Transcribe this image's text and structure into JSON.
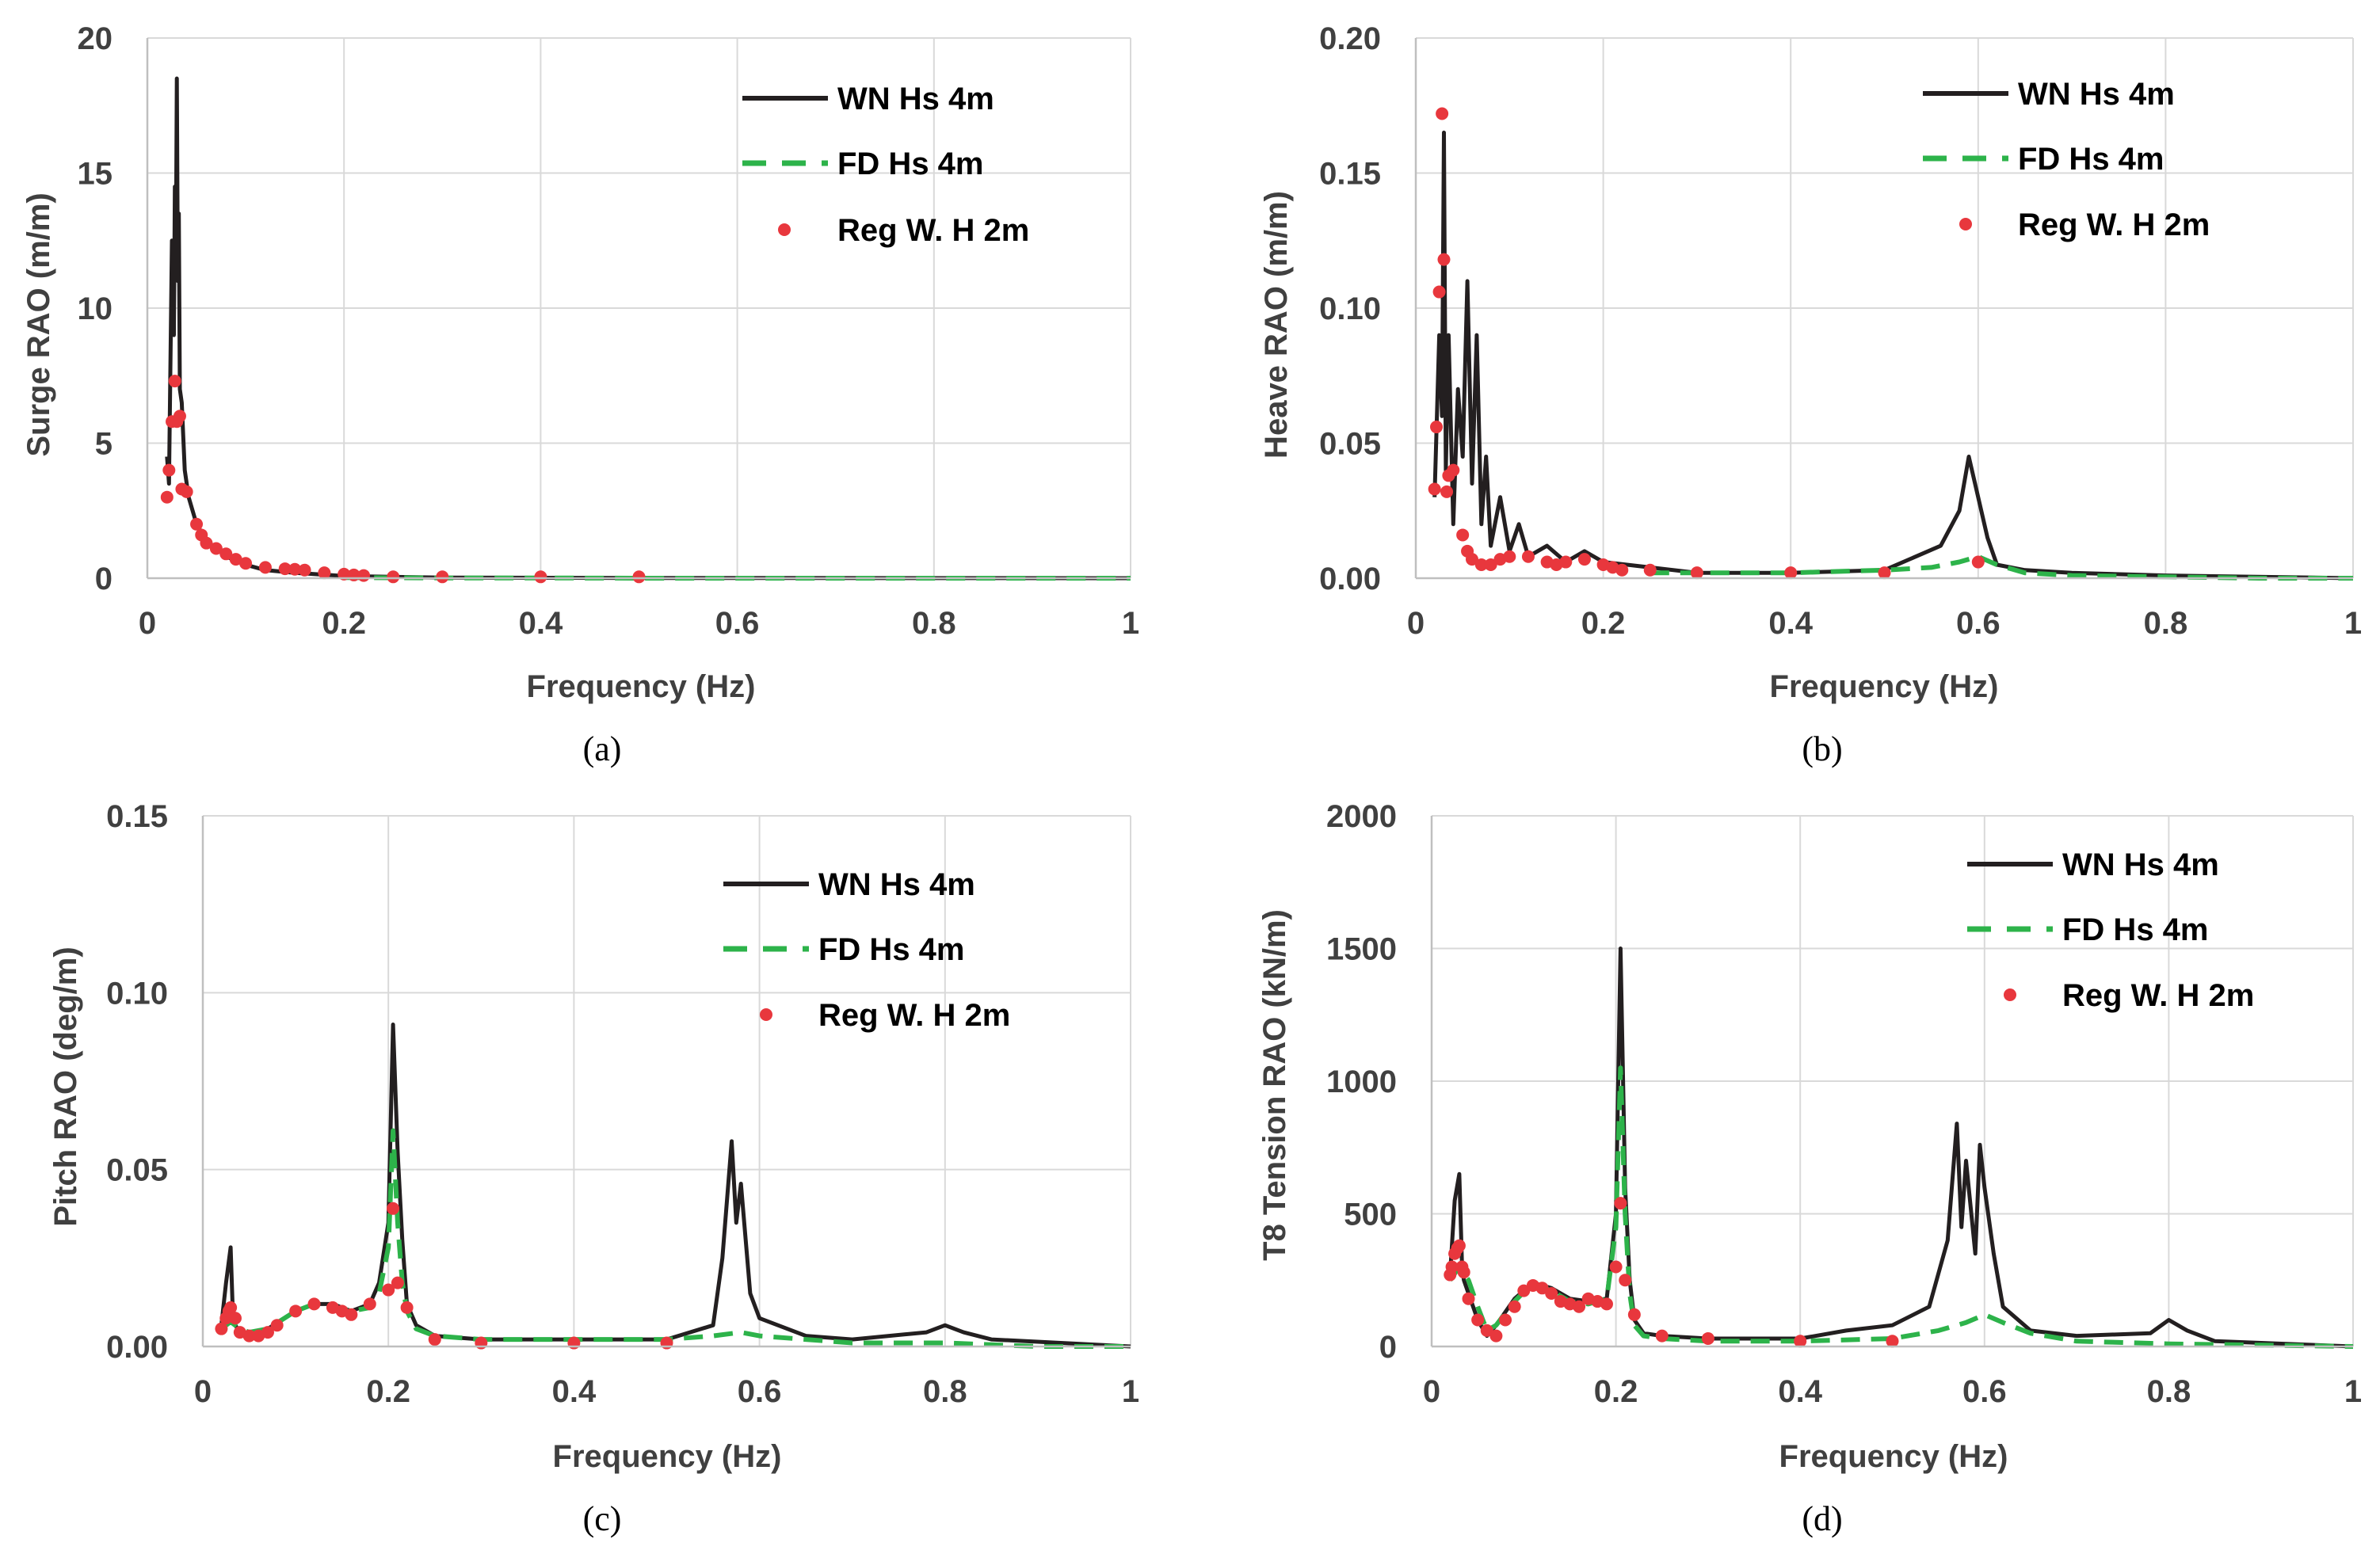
{
  "colors": {
    "wn": "#231f20",
    "fd": "#2db34a",
    "reg": "#e8373d",
    "grid": "#d9d9d9",
    "text": "#404040"
  },
  "chart_data": [
    {
      "type": "line",
      "caption": "(a)",
      "xlabel": "Frequency (Hz)",
      "ylabel": "Surge RAO (m/m)",
      "xlim": [
        0,
        1
      ],
      "ylim": [
        0,
        20
      ],
      "xticks": [
        0,
        0.2,
        0.4,
        0.6,
        0.8,
        1
      ],
      "xtick_labels": [
        "0",
        "0.2",
        "0.4",
        "0.6",
        "0.8",
        "1"
      ],
      "yticks": [
        0,
        5,
        10,
        15,
        20
      ],
      "ytick_labels": [
        "0",
        "5",
        "10",
        "15",
        "20"
      ],
      "legend": [
        "WN Hs 4m",
        "FD Hs 4m",
        "Reg W. H 2m"
      ],
      "legend_position": "top-right",
      "series": [
        {
          "name": "WN Hs 4m",
          "kind": "line",
          "x": [
            0.02,
            0.022,
            0.025,
            0.027,
            0.028,
            0.029,
            0.03,
            0.031,
            0.032,
            0.033,
            0.035,
            0.038,
            0.042,
            0.05,
            0.06,
            0.07,
            0.08,
            0.1,
            0.12,
            0.15,
            0.2,
            0.3,
            0.5,
            1.0
          ],
          "y": [
            4.5,
            3.5,
            12.5,
            9.0,
            14.5,
            12.0,
            18.5,
            11.0,
            13.5,
            7.0,
            6.5,
            4.0,
            3.0,
            2.0,
            1.4,
            1.1,
            0.8,
            0.5,
            0.3,
            0.2,
            0.08,
            0.02,
            0.01,
            0.0
          ]
        },
        {
          "name": "FD Hs 4m",
          "kind": "dashed",
          "x": [
            0.2,
            0.3,
            0.4,
            0.5,
            0.6,
            0.7,
            0.8,
            0.9,
            1.0
          ],
          "y": [
            0.02,
            0.01,
            0.01,
            0.0,
            0.0,
            0.0,
            0.0,
            0.0,
            0.0
          ]
        },
        {
          "name": "Reg W. H 2m",
          "kind": "points",
          "x": [
            0.02,
            0.022,
            0.025,
            0.028,
            0.03,
            0.033,
            0.035,
            0.04,
            0.05,
            0.055,
            0.06,
            0.07,
            0.08,
            0.09,
            0.1,
            0.12,
            0.14,
            0.15,
            0.16,
            0.18,
            0.2,
            0.21,
            0.22,
            0.25,
            0.3,
            0.4,
            0.5
          ],
          "y": [
            3.0,
            4.0,
            5.8,
            7.3,
            5.8,
            6.0,
            3.3,
            3.2,
            2.0,
            1.6,
            1.3,
            1.1,
            0.9,
            0.7,
            0.55,
            0.4,
            0.35,
            0.33,
            0.3,
            0.2,
            0.15,
            0.12,
            0.1,
            0.05,
            0.05,
            0.05,
            0.05
          ]
        }
      ]
    },
    {
      "type": "line",
      "caption": "(b)",
      "xlabel": "Frequency (Hz)",
      "ylabel": "Heave RAO (m/m)",
      "xlim": [
        0,
        1
      ],
      "ylim": [
        0,
        0.2
      ],
      "xticks": [
        0,
        0.2,
        0.4,
        0.6,
        0.8,
        1
      ],
      "xtick_labels": [
        "0",
        "0.2",
        "0.4",
        "0.6",
        "0.8",
        "1"
      ],
      "yticks": [
        0,
        0.05,
        0.1,
        0.15,
        0.2
      ],
      "ytick_labels": [
        "0.00",
        "0.05",
        "0.10",
        "0.15",
        "0.20"
      ],
      "legend": [
        "WN Hs 4m",
        "FD Hs 4m",
        "Reg W. H 2m"
      ],
      "legend_position": "top-right",
      "series": [
        {
          "name": "WN Hs 4m",
          "kind": "line",
          "x": [
            0.02,
            0.025,
            0.028,
            0.03,
            0.032,
            0.035,
            0.04,
            0.045,
            0.05,
            0.055,
            0.06,
            0.065,
            0.07,
            0.075,
            0.08,
            0.09,
            0.1,
            0.11,
            0.12,
            0.14,
            0.16,
            0.18,
            0.2,
            0.25,
            0.3,
            0.4,
            0.5,
            0.56,
            0.58,
            0.59,
            0.6,
            0.61,
            0.62,
            0.65,
            0.7,
            0.8,
            1.0
          ],
          "y": [
            0.03,
            0.09,
            0.06,
            0.165,
            0.04,
            0.09,
            0.02,
            0.07,
            0.045,
            0.11,
            0.035,
            0.09,
            0.02,
            0.045,
            0.012,
            0.03,
            0.01,
            0.02,
            0.008,
            0.012,
            0.006,
            0.01,
            0.006,
            0.004,
            0.002,
            0.002,
            0.003,
            0.012,
            0.025,
            0.045,
            0.03,
            0.015,
            0.005,
            0.003,
            0.002,
            0.001,
            0.0
          ]
        },
        {
          "name": "FD Hs 4m",
          "kind": "dashed",
          "x": [
            0.25,
            0.3,
            0.4,
            0.5,
            0.55,
            0.58,
            0.6,
            0.62,
            0.65,
            0.7,
            0.8,
            0.9,
            1.0
          ],
          "y": [
            0.002,
            0.002,
            0.002,
            0.003,
            0.004,
            0.006,
            0.008,
            0.005,
            0.002,
            0.001,
            0.0005,
            0.0,
            0.0
          ]
        },
        {
          "name": "Reg W. H 2m",
          "kind": "points",
          "x": [
            0.02,
            0.022,
            0.025,
            0.028,
            0.03,
            0.033,
            0.035,
            0.04,
            0.05,
            0.055,
            0.06,
            0.07,
            0.08,
            0.09,
            0.1,
            0.12,
            0.14,
            0.15,
            0.16,
            0.18,
            0.2,
            0.21,
            0.22,
            0.25,
            0.3,
            0.4,
            0.5,
            0.6
          ],
          "y": [
            0.033,
            0.056,
            0.106,
            0.172,
            0.118,
            0.032,
            0.038,
            0.04,
            0.016,
            0.01,
            0.007,
            0.005,
            0.005,
            0.007,
            0.008,
            0.008,
            0.006,
            0.005,
            0.006,
            0.007,
            0.005,
            0.004,
            0.003,
            0.003,
            0.002,
            0.002,
            0.002,
            0.006
          ]
        }
      ]
    },
    {
      "type": "line",
      "caption": "(c)",
      "xlabel": "Frequency (Hz)",
      "ylabel": "Pitch RAO (deg/m)",
      "xlim": [
        0,
        1
      ],
      "ylim": [
        0,
        0.15
      ],
      "xticks": [
        0,
        0.2,
        0.4,
        0.6,
        0.8,
        1
      ],
      "xtick_labels": [
        "0",
        "0.2",
        "0.4",
        "0.6",
        "0.8",
        "1"
      ],
      "yticks": [
        0,
        0.05,
        0.1,
        0.15
      ],
      "ytick_labels": [
        "0.00",
        "0.05",
        "0.10",
        "0.15"
      ],
      "legend": [
        "WN Hs 4m",
        "FD Hs 4m",
        "Reg W. H 2m"
      ],
      "legend_position": "top-right",
      "series": [
        {
          "name": "WN Hs 4m",
          "kind": "line",
          "x": [
            0.02,
            0.025,
            0.03,
            0.032,
            0.035,
            0.04,
            0.05,
            0.07,
            0.1,
            0.12,
            0.14,
            0.16,
            0.18,
            0.19,
            0.2,
            0.205,
            0.21,
            0.215,
            0.22,
            0.23,
            0.25,
            0.3,
            0.4,
            0.5,
            0.55,
            0.56,
            0.57,
            0.575,
            0.58,
            0.59,
            0.6,
            0.65,
            0.7,
            0.78,
            0.8,
            0.82,
            0.85,
            1.0
          ],
          "y": [
            0.006,
            0.018,
            0.028,
            0.012,
            0.006,
            0.004,
            0.003,
            0.005,
            0.01,
            0.012,
            0.012,
            0.01,
            0.012,
            0.018,
            0.035,
            0.091,
            0.055,
            0.03,
            0.012,
            0.006,
            0.003,
            0.002,
            0.002,
            0.002,
            0.006,
            0.025,
            0.058,
            0.035,
            0.046,
            0.015,
            0.008,
            0.003,
            0.002,
            0.004,
            0.006,
            0.004,
            0.002,
            0.0
          ]
        },
        {
          "name": "FD Hs 4m",
          "kind": "dashed",
          "x": [
            0.02,
            0.03,
            0.04,
            0.05,
            0.07,
            0.1,
            0.12,
            0.14,
            0.16,
            0.18,
            0.19,
            0.2,
            0.205,
            0.21,
            0.215,
            0.22,
            0.23,
            0.25,
            0.3,
            0.4,
            0.5,
            0.55,
            0.58,
            0.6,
            0.65,
            0.7,
            0.8,
            0.9,
            1.0
          ],
          "y": [
            0.005,
            0.007,
            0.005,
            0.004,
            0.005,
            0.01,
            0.012,
            0.011,
            0.01,
            0.011,
            0.015,
            0.028,
            0.061,
            0.035,
            0.018,
            0.01,
            0.005,
            0.003,
            0.002,
            0.002,
            0.002,
            0.003,
            0.004,
            0.003,
            0.002,
            0.001,
            0.001,
            0.0,
            0.0
          ]
        },
        {
          "name": "Reg W. H 2m",
          "kind": "points",
          "x": [
            0.02,
            0.025,
            0.028,
            0.03,
            0.035,
            0.04,
            0.05,
            0.06,
            0.07,
            0.08,
            0.1,
            0.12,
            0.14,
            0.15,
            0.16,
            0.18,
            0.2,
            0.205,
            0.21,
            0.22,
            0.25,
            0.3,
            0.4,
            0.5
          ],
          "y": [
            0.005,
            0.008,
            0.01,
            0.011,
            0.008,
            0.004,
            0.003,
            0.003,
            0.004,
            0.006,
            0.01,
            0.012,
            0.011,
            0.01,
            0.009,
            0.012,
            0.016,
            0.039,
            0.018,
            0.011,
            0.002,
            0.001,
            0.001,
            0.001
          ]
        }
      ]
    },
    {
      "type": "line",
      "caption": "(d)",
      "xlabel": "Frequency (Hz)",
      "ylabel": "T8 Tension RAO (kN/m)",
      "xlim": [
        0,
        1
      ],
      "ylim": [
        0,
        2000
      ],
      "xticks": [
        0,
        0.2,
        0.4,
        0.6,
        0.8,
        1
      ],
      "xtick_labels": [
        "0",
        "0.2",
        "0.4",
        "0.6",
        "0.8",
        "1"
      ],
      "yticks": [
        0,
        500,
        1000,
        1500,
        2000
      ],
      "ytick_labels": [
        "0",
        "500",
        "1000",
        "1500",
        "2000"
      ],
      "legend": [
        "WN Hs 4m",
        "FD Hs 4m",
        "Reg W. H 2m"
      ],
      "legend_position": "top-right",
      "series": [
        {
          "name": "WN Hs 4m",
          "kind": "line",
          "x": [
            0.02,
            0.025,
            0.03,
            0.033,
            0.035,
            0.04,
            0.05,
            0.06,
            0.07,
            0.09,
            0.11,
            0.13,
            0.15,
            0.17,
            0.19,
            0.2,
            0.205,
            0.21,
            0.215,
            0.22,
            0.23,
            0.25,
            0.3,
            0.4,
            0.45,
            0.5,
            0.54,
            0.56,
            0.57,
            0.575,
            0.58,
            0.59,
            0.595,
            0.6,
            0.61,
            0.62,
            0.65,
            0.7,
            0.78,
            0.8,
            0.82,
            0.85,
            1.0
          ],
          "y": [
            270,
            550,
            650,
            300,
            250,
            200,
            100,
            40,
            80,
            180,
            240,
            220,
            180,
            170,
            180,
            500,
            1500,
            600,
            250,
            100,
            50,
            40,
            30,
            30,
            60,
            80,
            150,
            400,
            840,
            450,
            700,
            350,
            760,
            600,
            350,
            150,
            60,
            40,
            50,
            100,
            60,
            20,
            0
          ]
        },
        {
          "name": "FD Hs 4m",
          "kind": "dashed",
          "x": [
            0.02,
            0.03,
            0.04,
            0.05,
            0.06,
            0.07,
            0.09,
            0.11,
            0.13,
            0.15,
            0.17,
            0.19,
            0.2,
            0.205,
            0.21,
            0.215,
            0.22,
            0.23,
            0.25,
            0.3,
            0.4,
            0.5,
            0.55,
            0.58,
            0.6,
            0.62,
            0.65,
            0.7,
            0.8,
            0.9,
            1.0
          ],
          "y": [
            250,
            300,
            250,
            150,
            60,
            80,
            170,
            240,
            210,
            170,
            160,
            180,
            450,
            1050,
            500,
            200,
            80,
            40,
            30,
            20,
            20,
            30,
            60,
            90,
            120,
            90,
            50,
            20,
            10,
            5,
            0
          ]
        },
        {
          "name": "Reg W. H 2m",
          "kind": "points",
          "x": [
            0.02,
            0.022,
            0.025,
            0.028,
            0.03,
            0.033,
            0.035,
            0.04,
            0.05,
            0.06,
            0.07,
            0.08,
            0.09,
            0.1,
            0.11,
            0.12,
            0.13,
            0.14,
            0.15,
            0.16,
            0.17,
            0.18,
            0.19,
            0.2,
            0.205,
            0.21,
            0.22,
            0.25,
            0.3,
            0.4,
            0.5
          ],
          "y": [
            270,
            300,
            350,
            370,
            380,
            300,
            280,
            180,
            100,
            60,
            40,
            100,
            150,
            210,
            230,
            220,
            200,
            170,
            160,
            150,
            180,
            170,
            160,
            300,
            540,
            250,
            120,
            40,
            30,
            20,
            20
          ]
        }
      ]
    }
  ]
}
